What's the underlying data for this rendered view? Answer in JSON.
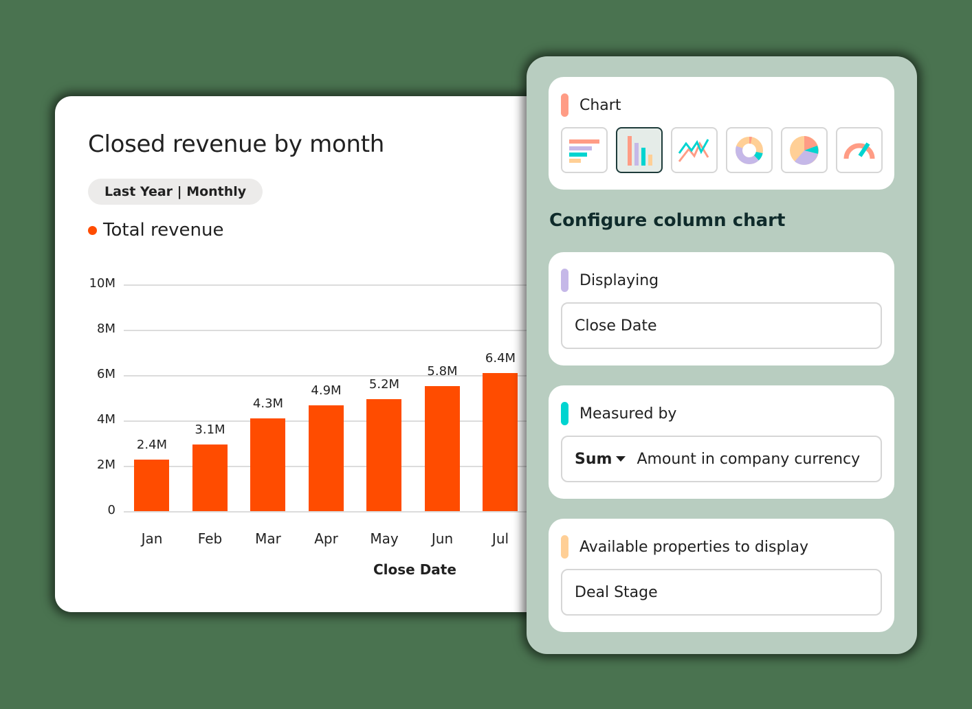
{
  "report_card": {
    "title": "Closed revenue by month",
    "filter_pill": "Last Year | Monthly",
    "legend_label": "Total revenue",
    "x_axis_title": "Close Date"
  },
  "chart_data": {
    "type": "bar",
    "title": "Closed revenue by month",
    "subtitle": "Last Year | Monthly",
    "xlabel": "Close Date",
    "ylabel": "",
    "categories": [
      "Jan",
      "Feb",
      "Mar",
      "Apr",
      "May",
      "Jun",
      "Jul"
    ],
    "series": [
      {
        "name": "Total revenue",
        "color": "#ff4c00",
        "values": [
          2.4,
          3.1,
          4.3,
          4.9,
          5.2,
          5.8,
          6.4
        ],
        "value_labels": [
          "2.4M",
          "3.1M",
          "4.3M",
          "4.9M",
          "5.2M",
          "5.8M",
          "6.4M"
        ]
      }
    ],
    "y_ticks": [
      "0",
      "2M",
      "4M",
      "6M",
      "8M",
      "10M"
    ],
    "ylim": [
      0,
      10
    ],
    "y_unit": "M",
    "grid": true,
    "legend_position": "top-left"
  },
  "config_panel": {
    "chart_section": {
      "label": "Chart",
      "accent_color": "#ff9c85",
      "chart_types": [
        {
          "name": "horizontal-bar",
          "selected": false
        },
        {
          "name": "column",
          "selected": true
        },
        {
          "name": "line",
          "selected": false
        },
        {
          "name": "donut",
          "selected": false
        },
        {
          "name": "pie",
          "selected": false
        },
        {
          "name": "gauge",
          "selected": false
        }
      ]
    },
    "title": "Configure column chart",
    "displaying": {
      "label": "Displaying",
      "accent_color": "#c5b8e8",
      "value": "Close Date"
    },
    "measured_by": {
      "label": "Measured by",
      "accent_color": "#00d4d0",
      "aggregation": "Sum",
      "value": "Amount in company currency"
    },
    "available_properties": {
      "label": "Available properties to display",
      "accent_color": "#ffcf96",
      "value": "Deal Stage"
    }
  },
  "colors": {
    "background": "#4a7350",
    "panel": "#b8cdc0",
    "bar": "#ff4c00",
    "coral": "#ff9c85",
    "lavender": "#c5b8e8",
    "teal": "#00d4d0",
    "peach": "#ffcf96"
  }
}
